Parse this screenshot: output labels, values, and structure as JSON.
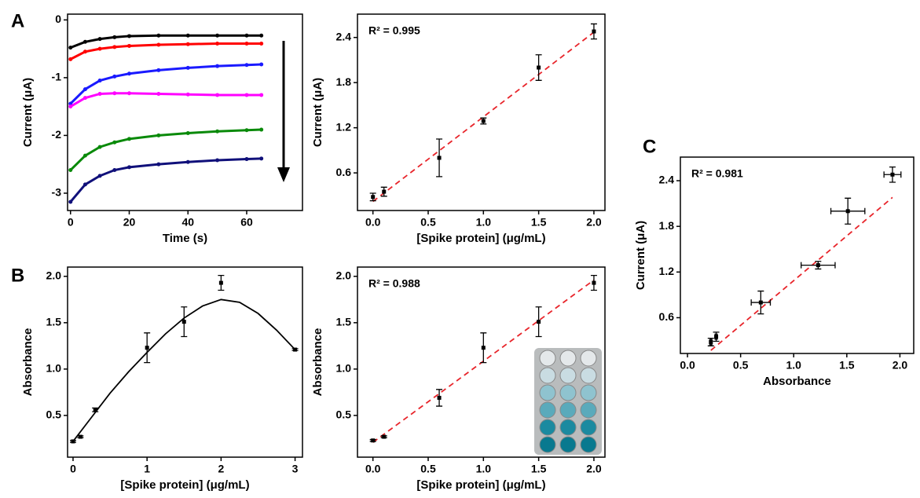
{
  "chart_data": [
    {
      "type": "line",
      "panel_label": "A",
      "x_label": "Time (s)",
      "y_label": "Current (μA)",
      "x": [
        0,
        5,
        10,
        15,
        20,
        30,
        40,
        50,
        60,
        65
      ],
      "series": [
        {
          "color": "#000000",
          "values": [
            -0.48,
            -0.38,
            -0.33,
            -0.3,
            -0.28,
            -0.27,
            -0.27,
            -0.27,
            -0.27,
            -0.27
          ]
        },
        {
          "color": "#ff0000",
          "values": [
            -0.68,
            -0.55,
            -0.5,
            -0.47,
            -0.45,
            -0.43,
            -0.42,
            -0.41,
            -0.41,
            -0.41
          ]
        },
        {
          "color": "#1a1aff",
          "values": [
            -1.45,
            -1.2,
            -1.05,
            -0.98,
            -0.93,
            -0.87,
            -0.83,
            -0.8,
            -0.78,
            -0.77
          ]
        },
        {
          "color": "#ff00ff",
          "values": [
            -1.5,
            -1.35,
            -1.28,
            -1.27,
            -1.27,
            -1.28,
            -1.29,
            -1.3,
            -1.3,
            -1.3
          ]
        },
        {
          "color": "#0a8a0a",
          "values": [
            -2.6,
            -2.35,
            -2.2,
            -2.12,
            -2.06,
            -2.0,
            -1.96,
            -1.93,
            -1.91,
            -1.9
          ]
        },
        {
          "color": "#10107a",
          "values": [
            -3.15,
            -2.85,
            -2.7,
            -2.6,
            -2.55,
            -2.5,
            -2.46,
            -2.43,
            -2.41,
            -2.4
          ]
        }
      ],
      "xlim": [
        -1,
        79
      ],
      "ylim": [
        -3.3,
        0.1
      ],
      "xticks": [
        0,
        20,
        40,
        60
      ],
      "yticks": [
        0,
        -1,
        -2,
        -3
      ]
    },
    {
      "type": "scatter",
      "x_label": "[Spike protein] (μg/mL)",
      "y_label": "Current (μA)",
      "annotation": "R² = 0.995",
      "x": [
        0,
        0.1,
        0.6,
        1,
        1.5,
        2
      ],
      "values": [
        0.28,
        0.35,
        0.8,
        1.29,
        2.0,
        2.48
      ],
      "errors": [
        0.05,
        0.06,
        0.25,
        0.04,
        0.17,
        0.1
      ],
      "fit": {
        "x": [
          0,
          2
        ],
        "values": [
          0.22,
          2.47
        ],
        "color": "#e8252b"
      },
      "xlim": [
        -0.14,
        2.1
      ],
      "ylim": [
        0.1,
        2.71
      ],
      "xticks": [
        {
          "value": 0,
          "label": "0.0"
        },
        {
          "value": 0.5,
          "label": "0.5"
        },
        {
          "value": 1,
          "label": "1.0"
        },
        {
          "value": 1.5,
          "label": "1.5"
        },
        {
          "value": 2,
          "label": "2.0"
        }
      ],
      "yticks": [
        0.6,
        1.2,
        1.8,
        2.4
      ]
    },
    {
      "type": "scatter",
      "panel_label": "B",
      "x_label": "[Spike protein] (μg/mL)",
      "y_label": "Absorbance",
      "x": [
        0,
        0.1,
        0.3,
        1,
        1.5,
        2,
        3
      ],
      "values": [
        0.22,
        0.27,
        0.56,
        1.23,
        1.51,
        1.93,
        1.21
      ],
      "errors": [
        0.01,
        0.01,
        0.02,
        0.16,
        0.16,
        0.08,
        0.01
      ],
      "fit": {
        "x": [
          0,
          0.25,
          0.5,
          0.75,
          1,
          1.25,
          1.5,
          1.75,
          2,
          2.25,
          2.5,
          2.75,
          3
        ],
        "values": [
          0.22,
          0.48,
          0.74,
          0.97,
          1.18,
          1.38,
          1.55,
          1.68,
          1.75,
          1.72,
          1.6,
          1.42,
          1.21
        ],
        "color": "#000000"
      },
      "xlim": [
        -0.074,
        3.1
      ],
      "ylim": [
        0.05,
        2.1
      ],
      "xticks": [
        0,
        1,
        2,
        3
      ],
      "yticks": [
        0.5,
        {
          "value": 1,
          "label": "1.0"
        },
        1.5,
        {
          "value": 2,
          "label": "2.0"
        }
      ]
    },
    {
      "type": "scatter",
      "x_label": "[Spike protein] (μg/mL)",
      "y_label": "Absorbance",
      "annotation": "R² = 0.988",
      "x": [
        0,
        0.1,
        0.6,
        1,
        1.5,
        2
      ],
      "values": [
        0.23,
        0.27,
        0.69,
        1.23,
        1.51,
        1.93
      ],
      "errors": [
        0.01,
        0.01,
        0.09,
        0.16,
        0.16,
        0.08
      ],
      "fit": {
        "x": [
          0,
          2
        ],
        "values": [
          0.21,
          1.96
        ],
        "color": "#e8252b"
      },
      "xlim": [
        -0.14,
        2.1
      ],
      "ylim": [
        0.05,
        2.1
      ],
      "xticks": [
        {
          "value": 0,
          "label": "0.0"
        },
        {
          "value": 0.5,
          "label": "0.5"
        },
        {
          "value": 1,
          "label": "1.0"
        },
        {
          "value": 1.5,
          "label": "1.5"
        },
        {
          "value": 2,
          "label": "2.0"
        }
      ],
      "yticks": [
        0.5,
        {
          "value": 1,
          "label": "1.0"
        },
        1.5,
        {
          "value": 2,
          "label": "2.0"
        }
      ]
    },
    {
      "type": "scatter",
      "panel_label": "C",
      "x_label": "Absorbance",
      "y_label": "Current (μA)",
      "annotation": "R² = 0.981",
      "x": [
        0.22,
        0.27,
        0.69,
        1.23,
        1.51,
        1.93
      ],
      "values": [
        0.28,
        0.35,
        0.8,
        1.29,
        2.0,
        2.48
      ],
      "errors": [
        0.05,
        0.06,
        0.15,
        0.05,
        0.17,
        0.1
      ],
      "x_errors": [
        0.01,
        0.01,
        0.09,
        0.16,
        0.16,
        0.08
      ],
      "fit": {
        "x": [
          0.22,
          1.93
        ],
        "values": [
          0.17,
          2.18
        ],
        "color": "#e8252b"
      },
      "xlim": [
        -0.067,
        2.13
      ],
      "ylim": [
        0.13,
        2.71
      ],
      "xticks": [
        {
          "value": 0,
          "label": "0.0"
        },
        {
          "value": 0.5,
          "label": "0.5"
        },
        {
          "value": 1,
          "label": "1.0"
        },
        {
          "value": 1.5,
          "label": "1.5"
        },
        {
          "value": 2,
          "label": "2.0"
        }
      ],
      "yticks": [
        0.6,
        1.2,
        1.8,
        2.4
      ]
    }
  ]
}
